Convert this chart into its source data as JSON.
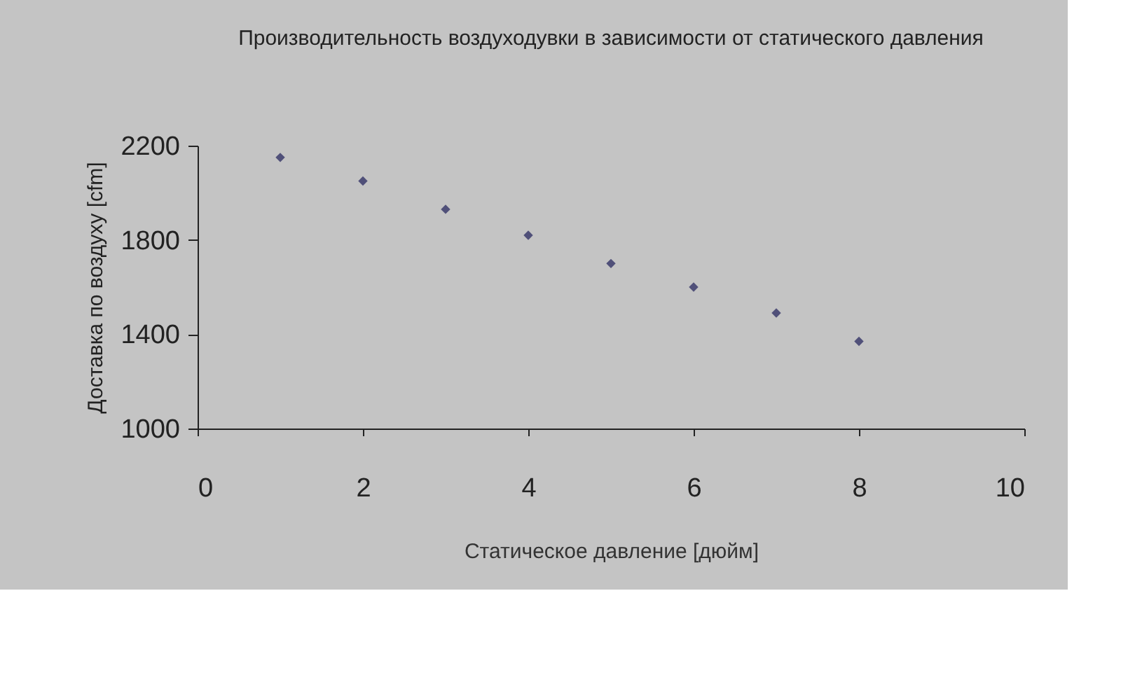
{
  "chart_data": {
    "type": "scatter",
    "title": "Производительность воздуходувки в зависимости от статического давления",
    "xlabel": "Статическое давление [дюйм]",
    "ylabel": "Доставка по воздуху [cfm]",
    "x": [
      1,
      2,
      3,
      4,
      5,
      6,
      7,
      8
    ],
    "series": [
      {
        "color": "#1f1f5a",
        "values": [
          2150,
          2050,
          1930,
          1820,
          1700,
          1600,
          1490,
          1370
        ]
      }
    ],
    "xlim": [
      0,
      10
    ],
    "xticks": [
      0,
      2,
      4,
      6,
      8,
      10
    ],
    "ylim": [
      1000,
      2200
    ],
    "yticks": [
      1000,
      1400,
      1800,
      2200
    ],
    "grid": false,
    "marker": "diamond"
  }
}
